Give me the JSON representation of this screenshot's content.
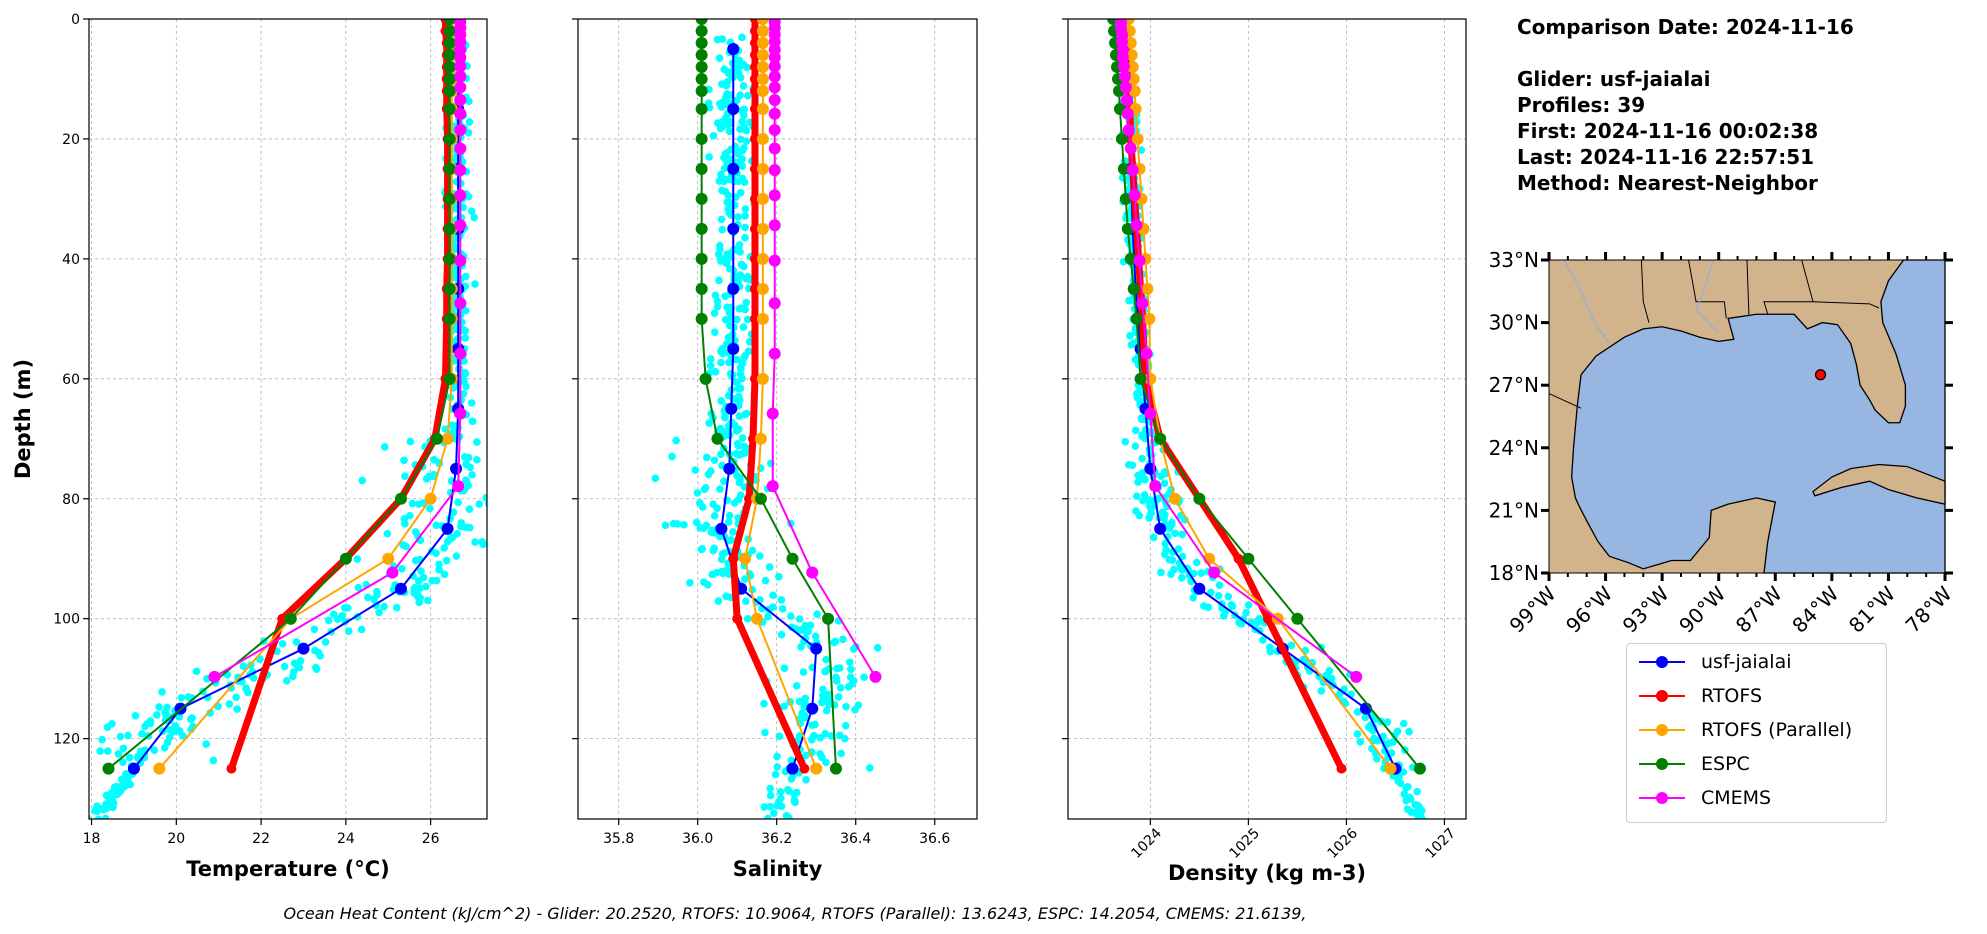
{
  "info": {
    "comparison_date": "Comparison Date: 2024-11-16",
    "glider": "Glider: usf-jaialai",
    "profiles": "Profiles: 39",
    "first": "First: 2024-11-16 00:02:38",
    "last": "Last: 2024-11-16 22:57:51",
    "method": "Method: Nearest-Neighbor"
  },
  "caption": "Ocean Heat Content (kJ/cm^2) - Glider: 20.2520,  RTOFS: 10.9064,  RTOFS (Parallel): 13.6243,  ESPC: 14.2054,  CMEMS: 21.6139,",
  "legend": [
    {
      "name": "usf-jaialai",
      "color": "#0000ff"
    },
    {
      "name": "RTOFS",
      "color": "#ff0000"
    },
    {
      "name": "RTOFS (Parallel)",
      "color": "#ffa500"
    },
    {
      "name": "ESPC",
      "color": "#008000"
    },
    {
      "name": "CMEMS",
      "color": "#ff00ff"
    }
  ],
  "chart_data": [
    {
      "type": "line",
      "xlabel": "Temperature (°C)",
      "ylabel": "Depth (m)",
      "xlim": [
        17.94,
        27.33
      ],
      "ylim": [
        133.4,
        0
      ],
      "xticks": [
        "18",
        "20",
        "22",
        "24",
        "26"
      ],
      "yticks": [
        "0",
        "20",
        "40",
        "60",
        "80",
        "100",
        "120"
      ],
      "grid": true,
      "scatter_color": "#00ffff",
      "series": [
        {
          "name": "usf-jaialai",
          "color": "#0000ff",
          "depth": [
            5,
            15,
            25,
            35,
            45,
            55,
            65,
            75,
            85,
            95,
            105,
            115,
            125
          ],
          "values": [
            26.65,
            26.65,
            26.65,
            26.65,
            26.65,
            26.65,
            26.65,
            26.6,
            26.4,
            25.3,
            23.0,
            20.1,
            19.0
          ]
        },
        {
          "name": "RTOFS",
          "color": "#ff0000",
          "depth": [
            0,
            2,
            4,
            6,
            8,
            10,
            12,
            15,
            20,
            25,
            30,
            35,
            40,
            45,
            50,
            60,
            70,
            80,
            90,
            100,
            125
          ],
          "values": [
            26.35,
            26.35,
            26.38,
            26.38,
            26.38,
            26.38,
            26.38,
            26.38,
            26.4,
            26.4,
            26.4,
            26.4,
            26.4,
            26.38,
            26.38,
            26.35,
            26.1,
            25.3,
            24.0,
            22.5,
            21.3
          ]
        },
        {
          "name": "RTOFS (Parallel)",
          "color": "#ffa500",
          "depth": [
            0,
            2,
            4,
            6,
            8,
            10,
            12,
            15,
            20,
            25,
            30,
            35,
            40,
            45,
            50,
            60,
            70,
            80,
            90,
            100,
            125
          ],
          "values": [
            26.5,
            26.5,
            26.5,
            26.5,
            26.5,
            26.5,
            26.5,
            26.5,
            26.5,
            26.5,
            26.5,
            26.5,
            26.5,
            26.5,
            26.5,
            26.5,
            26.4,
            26.0,
            25.0,
            22.7,
            19.6
          ]
        },
        {
          "name": "ESPC",
          "color": "#008000",
          "depth": [
            0,
            2,
            4,
            6,
            8,
            10,
            12,
            15,
            20,
            25,
            30,
            35,
            40,
            45,
            50,
            60,
            70,
            80,
            90,
            100,
            125
          ],
          "values": [
            26.45,
            26.45,
            26.45,
            26.45,
            26.45,
            26.45,
            26.45,
            26.45,
            26.45,
            26.45,
            26.45,
            26.45,
            26.45,
            26.45,
            26.45,
            26.45,
            26.15,
            25.3,
            24.0,
            22.7,
            18.4
          ]
        },
        {
          "name": "CMEMS",
          "color": "#ff00ff",
          "depth": [
            0.5,
            1.5,
            2.6,
            3.8,
            5.1,
            6.4,
            7.9,
            9.6,
            11.4,
            13.5,
            15.8,
            18.5,
            21.6,
            25.2,
            29.4,
            34.4,
            40.3,
            47.4,
            55.8,
            65.8,
            77.9,
            92.3,
            109.7
          ],
          "values": [
            26.7,
            26.7,
            26.7,
            26.7,
            26.7,
            26.7,
            26.7,
            26.7,
            26.7,
            26.7,
            26.7,
            26.7,
            26.7,
            26.7,
            26.7,
            26.7,
            26.7,
            26.7,
            26.7,
            26.7,
            26.65,
            25.1,
            20.9
          ]
        }
      ]
    },
    {
      "type": "line",
      "xlabel": "Salinity",
      "ylabel": "",
      "xlim": [
        35.697,
        36.707
      ],
      "ylim": [
        133.4,
        0
      ],
      "xticks": [
        "35.8",
        "36.0",
        "36.2",
        "36.4",
        "36.6"
      ],
      "grid": true,
      "scatter_color": "#00ffff",
      "series": [
        {
          "name": "usf-jaialai",
          "color": "#0000ff",
          "depth": [
            5,
            15,
            25,
            35,
            45,
            55,
            65,
            75,
            85,
            95,
            105,
            115,
            125
          ],
          "values": [
            36.09,
            36.09,
            36.09,
            36.09,
            36.09,
            36.09,
            36.085,
            36.08,
            36.06,
            36.11,
            36.3,
            36.29,
            36.24
          ]
        },
        {
          "name": "RTOFS",
          "color": "#ff0000",
          "depth": [
            0,
            2,
            4,
            6,
            8,
            10,
            12,
            15,
            20,
            25,
            30,
            35,
            40,
            45,
            50,
            60,
            70,
            80,
            90,
            100,
            125
          ],
          "values": [
            36.145,
            36.145,
            36.145,
            36.145,
            36.145,
            36.145,
            36.145,
            36.145,
            36.145,
            36.145,
            36.145,
            36.145,
            36.145,
            36.145,
            36.145,
            36.145,
            36.14,
            36.13,
            36.09,
            36.1,
            36.27
          ]
        },
        {
          "name": "RTOFS (Parallel)",
          "color": "#ffa500",
          "depth": [
            0,
            2,
            4,
            6,
            8,
            10,
            12,
            15,
            20,
            25,
            30,
            35,
            40,
            45,
            50,
            60,
            70,
            80,
            90,
            100,
            125
          ],
          "values": [
            36.165,
            36.165,
            36.165,
            36.165,
            36.165,
            36.165,
            36.165,
            36.165,
            36.165,
            36.165,
            36.165,
            36.165,
            36.165,
            36.165,
            36.165,
            36.165,
            36.16,
            36.15,
            36.12,
            36.15,
            36.3
          ]
        },
        {
          "name": "ESPC",
          "color": "#008000",
          "depth": [
            0,
            2,
            4,
            6,
            8,
            10,
            12,
            15,
            20,
            25,
            30,
            35,
            40,
            45,
            50,
            60,
            70,
            80,
            90,
            100,
            125
          ],
          "values": [
            36.01,
            36.01,
            36.01,
            36.01,
            36.01,
            36.01,
            36.01,
            36.01,
            36.01,
            36.01,
            36.01,
            36.01,
            36.01,
            36.01,
            36.01,
            36.02,
            36.05,
            36.16,
            36.24,
            36.33,
            36.35
          ]
        },
        {
          "name": "CMEMS",
          "color": "#ff00ff",
          "depth": [
            0.5,
            1.5,
            2.6,
            3.8,
            5.1,
            6.4,
            7.9,
            9.6,
            11.4,
            13.5,
            15.8,
            18.5,
            21.6,
            25.2,
            29.4,
            34.4,
            40.3,
            47.4,
            55.8,
            65.8,
            77.9,
            92.3,
            109.7
          ],
          "values": [
            36.195,
            36.195,
            36.195,
            36.195,
            36.195,
            36.195,
            36.195,
            36.195,
            36.195,
            36.195,
            36.195,
            36.195,
            36.195,
            36.195,
            36.195,
            36.195,
            36.195,
            36.195,
            36.195,
            36.19,
            36.19,
            36.29,
            36.45
          ]
        }
      ]
    },
    {
      "type": "line",
      "xlabel": "Density (kg m-3)",
      "ylabel": "",
      "xlim": [
        1023.16,
        1027.22
      ],
      "ylim": [
        133.4,
        0
      ],
      "xticks": [
        "1024",
        "1025",
        "1026",
        "1027"
      ],
      "grid": true,
      "scatter_color": "#00ffff",
      "series": [
        {
          "name": "usf-jaialai",
          "color": "#0000ff",
          "depth": [
            5,
            15,
            25,
            35,
            45,
            55,
            65,
            75,
            85,
            95,
            105,
            115,
            125
          ],
          "values": [
            1023.75,
            1023.78,
            1023.8,
            1023.82,
            1023.85,
            1023.9,
            1023.95,
            1024.0,
            1024.1,
            1024.5,
            1025.35,
            1026.2,
            1026.5
          ]
        },
        {
          "name": "RTOFS",
          "color": "#ff0000",
          "depth": [
            0,
            2,
            4,
            6,
            8,
            10,
            12,
            15,
            20,
            25,
            30,
            35,
            40,
            45,
            50,
            60,
            70,
            80,
            90,
            100,
            125
          ],
          "values": [
            1023.72,
            1023.73,
            1023.74,
            1023.75,
            1023.76,
            1023.77,
            1023.78,
            1023.79,
            1023.8,
            1023.82,
            1023.84,
            1023.86,
            1023.88,
            1023.9,
            1023.92,
            1023.95,
            1024.1,
            1024.5,
            1024.9,
            1025.2,
            1025.95
          ]
        },
        {
          "name": "RTOFS (Parallel)",
          "color": "#ffa500",
          "depth": [
            0,
            2,
            4,
            6,
            8,
            10,
            12,
            15,
            20,
            25,
            30,
            35,
            40,
            45,
            50,
            60,
            70,
            80,
            90,
            100,
            125
          ],
          "values": [
            1023.78,
            1023.79,
            1023.8,
            1023.81,
            1023.82,
            1023.83,
            1023.84,
            1023.85,
            1023.87,
            1023.89,
            1023.91,
            1023.93,
            1023.95,
            1023.97,
            1023.99,
            1024.0,
            1024.1,
            1024.25,
            1024.6,
            1025.3,
            1026.45
          ]
        },
        {
          "name": "ESPC",
          "color": "#008000",
          "depth": [
            0,
            2,
            4,
            6,
            8,
            10,
            12,
            15,
            20,
            25,
            30,
            35,
            40,
            45,
            50,
            60,
            70,
            80,
            90,
            100,
            125
          ],
          "values": [
            1023.62,
            1023.63,
            1023.64,
            1023.65,
            1023.66,
            1023.67,
            1023.68,
            1023.69,
            1023.71,
            1023.73,
            1023.75,
            1023.77,
            1023.8,
            1023.83,
            1023.86,
            1023.9,
            1024.1,
            1024.5,
            1025.0,
            1025.5,
            1026.75
          ]
        },
        {
          "name": "CMEMS",
          "color": "#ff00ff",
          "depth": [
            0.5,
            1.5,
            2.6,
            3.8,
            5.1,
            6.4,
            7.9,
            9.6,
            11.4,
            13.5,
            15.8,
            18.5,
            21.6,
            25.2,
            29.4,
            34.4,
            40.3,
            47.4,
            55.8,
            65.8,
            77.9,
            92.3,
            109.7
          ],
          "values": [
            1023.7,
            1023.7,
            1023.71,
            1023.71,
            1023.72,
            1023.72,
            1023.73,
            1023.74,
            1023.75,
            1023.76,
            1023.77,
            1023.78,
            1023.8,
            1023.82,
            1023.84,
            1023.86,
            1023.89,
            1023.92,
            1023.96,
            1024.0,
            1024.05,
            1024.65,
            1026.1
          ]
        }
      ]
    }
  ],
  "map": {
    "lon_range": [
      -99,
      -78
    ],
    "lat_range": [
      18,
      33
    ],
    "lon_ticks": [
      "99°W",
      "96°W",
      "93°W",
      "90°W",
      "87°W",
      "84°W",
      "81°W",
      "78°W"
    ],
    "lat_ticks": [
      "18°N",
      "21°N",
      "24°N",
      "27°N",
      "30°N",
      "33°N"
    ],
    "land_color": "#d2b48c",
    "ocean_color": "#97b6e1",
    "glider_position": {
      "lon": -84.6,
      "lat": 27.5,
      "color": "#ff0000"
    }
  }
}
